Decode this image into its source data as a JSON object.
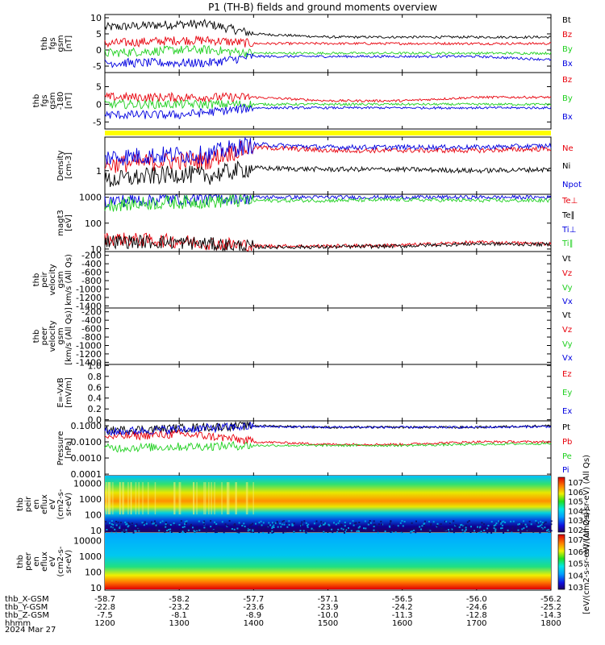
{
  "title": "P1 (TH-B) fields and ground moments overview",
  "date_label": "2024 Mar 27",
  "colors": {
    "black": "#000000",
    "red": "#e8000b",
    "green": "#20d020",
    "blue": "#0000e0",
    "yellow": "#ffff00"
  },
  "chart_data": {
    "type": "line",
    "x_axis": {
      "label": "hhmm",
      "ticks": [
        "1200",
        "1300",
        "1400",
        "1500",
        "1600",
        "1700",
        "1800"
      ],
      "ephemeris": [
        {
          "label": "thb_X-GSM",
          "values": [
            "-58.7",
            "-58.2",
            "-57.7",
            "-57.1",
            "-56.5",
            "-56.0",
            "-56.2"
          ]
        },
        {
          "label": "thb_Y-GSM",
          "values": [
            "-22.8",
            "-23.2",
            "-23.6",
            "-23.9",
            "-24.2",
            "-24.6",
            "-25.2"
          ]
        },
        {
          "label": "thb_Z-GSM",
          "values": [
            "-7.5",
            "-8.1",
            "-8.9",
            "-10.0",
            "-11.3",
            "-12.8",
            "-14.3"
          ]
        }
      ]
    },
    "panels": [
      {
        "id": "fgs",
        "ylabel": [
          "thb",
          "fgs",
          "gsm",
          "[nT]"
        ],
        "yticks": [
          "10",
          "5",
          "0",
          "-5"
        ],
        "legend": [
          {
            "name": "Bt",
            "color": "black"
          },
          {
            "name": "Bz",
            "color": "red"
          },
          {
            "name": "By",
            "color": "green"
          },
          {
            "name": "Bx",
            "color": "blue"
          }
        ]
      },
      {
        "id": "fgs-dsl",
        "ylabel": [
          "thb",
          "fgs",
          "gsm",
          "-180",
          "[nT]"
        ],
        "yticks": [
          "5",
          "0",
          "-5"
        ],
        "legend": [
          {
            "name": "Bz",
            "color": "red"
          },
          {
            "name": "By",
            "color": "green"
          },
          {
            "name": "Bx",
            "color": "blue"
          }
        ]
      },
      {
        "id": "density",
        "ylabel": [
          "Density",
          "[cm-3]"
        ],
        "yticks": [
          "1"
        ],
        "legend": [
          {
            "name": "Ne",
            "color": "red"
          },
          {
            "name": "Ni",
            "color": "black"
          },
          {
            "name": "Npot",
            "color": "blue"
          }
        ]
      },
      {
        "id": "temperature",
        "ylabel": [
          "magt3",
          "[eV]"
        ],
        "yticks": [
          "1000",
          "100",
          "10"
        ],
        "legend": [
          {
            "name": "Te⊥",
            "color": "red"
          },
          {
            "name": "Te∥",
            "color": "black"
          },
          {
            "name": "Ti⊥",
            "color": "blue"
          },
          {
            "name": "Ti∥",
            "color": "green"
          }
        ]
      },
      {
        "id": "ion-velocity",
        "ylabel": [
          "thb",
          "peir",
          "velocity",
          "gsm",
          "km/s (All Qs)"
        ],
        "yticks": [
          "-200",
          "-400",
          "-600",
          "-800",
          "-1000",
          "-1200",
          "-1400"
        ],
        "legend": [
          {
            "name": "Vt",
            "color": "black"
          },
          {
            "name": "Vz",
            "color": "red"
          },
          {
            "name": "Vy",
            "color": "green"
          },
          {
            "name": "Vx",
            "color": "blue"
          }
        ]
      },
      {
        "id": "electron-velocity",
        "ylabel": [
          "thb",
          "peer",
          "velocity",
          "gsm",
          "[km/s (All Qs)]"
        ],
        "yticks": [
          "-200",
          "-400",
          "-600",
          "-800",
          "-1000",
          "-1200",
          "-1400"
        ],
        "legend": [
          {
            "name": "Vt",
            "color": "black"
          },
          {
            "name": "Vz",
            "color": "red"
          },
          {
            "name": "Vy",
            "color": "green"
          },
          {
            "name": "Vx",
            "color": "blue"
          }
        ]
      },
      {
        "id": "efield",
        "ylabel": [
          "E=-VxB",
          "[mV/m]"
        ],
        "yticks": [
          "1.0",
          "0.8",
          "0.6",
          "0.4",
          "0.2",
          "0.0"
        ],
        "legend": [
          {
            "name": "Ez",
            "color": "red"
          },
          {
            "name": "Ey",
            "color": "green"
          },
          {
            "name": "Ex",
            "color": "blue"
          }
        ]
      },
      {
        "id": "pressure",
        "ylabel": [
          "Pressure",
          "[nPa]"
        ],
        "yticks": [
          "0.1000",
          "0.0100",
          "0.0010",
          "0.0001"
        ],
        "legend": [
          {
            "name": "Pt",
            "color": "black"
          },
          {
            "name": "Pb",
            "color": "red"
          },
          {
            "name": "Pe",
            "color": "green"
          },
          {
            "name": "Pi",
            "color": "blue"
          }
        ]
      },
      {
        "id": "ion-spectrogram",
        "ylabel": [
          "thb",
          "peir",
          "en",
          "eflux",
          "eV",
          "(cm2-s-",
          "sr-eV)"
        ],
        "yticks": [
          "10000",
          "1000",
          "100",
          "10"
        ],
        "colorbar": {
          "ticks": [
            "10^7",
            "10^6",
            "10^5",
            "10^4",
            "10^3",
            "10^2"
          ],
          "label": "eV/(cm2-s-sr-eV) (All Qs)"
        }
      },
      {
        "id": "electron-spectrogram",
        "ylabel": [
          "thb",
          "peer",
          "en",
          "eflux",
          "eV",
          "(cm2-s-",
          "sr-eV)"
        ],
        "yticks": [
          "10000",
          "1000",
          "100",
          "10"
        ],
        "colorbar": {
          "ticks": [
            "10^7",
            "10^6",
            "10^5",
            "10^4",
            "10^3"
          ],
          "label": "[eV/(cm2-s-sr-eV) (All Qs)]"
        }
      }
    ],
    "series": [
      {
        "panel": "fgs",
        "name": "Bt",
        "x": [
          1200,
          1300,
          1340,
          1400,
          1500,
          1600,
          1700,
          1800
        ],
        "values": [
          7,
          8,
          8,
          5,
          4,
          4,
          4,
          4
        ]
      },
      {
        "panel": "fgs",
        "name": "Bz",
        "x": [
          1200,
          1300,
          1340,
          1400,
          1500,
          1600,
          1700,
          1800
        ],
        "values": [
          2,
          3,
          3,
          2,
          2,
          2,
          2,
          2
        ]
      },
      {
        "panel": "fgs",
        "name": "By",
        "x": [
          1200,
          1300,
          1340,
          1400,
          1500,
          1600,
          1700,
          1800
        ],
        "values": [
          -1,
          0,
          0,
          -1,
          -1,
          -1,
          -1,
          -1
        ]
      },
      {
        "panel": "fgs",
        "name": "Bx",
        "x": [
          1200,
          1300,
          1340,
          1400,
          1500,
          1600,
          1700,
          1800
        ],
        "values": [
          -4,
          -4,
          -4,
          -2,
          -2,
          -2,
          -2,
          -3
        ]
      },
      {
        "panel": "fgs-dsl",
        "name": "Bz",
        "x": [
          1200,
          1300,
          1400,
          1500,
          1600,
          1700,
          1800
        ],
        "values": [
          2,
          2,
          2,
          1,
          1,
          2,
          2
        ]
      },
      {
        "panel": "fgs-dsl",
        "name": "By",
        "x": [
          1200,
          1300,
          1400,
          1500,
          1600,
          1700,
          1800
        ],
        "values": [
          0,
          0,
          0,
          0,
          0,
          0,
          0
        ]
      },
      {
        "panel": "fgs-dsl",
        "name": "Bx",
        "x": [
          1200,
          1300,
          1400,
          1500,
          1600,
          1700,
          1800
        ],
        "values": [
          -3,
          -3,
          -1,
          -1,
          -1,
          -1,
          -1
        ]
      },
      {
        "panel": "density",
        "name": "Ne",
        "x": [
          1200,
          1300,
          1340,
          1400,
          1500,
          1600,
          1700,
          1800
        ],
        "values": [
          1.5,
          2,
          2,
          5,
          4,
          4,
          4,
          4.5
        ]
      },
      {
        "panel": "density",
        "name": "Ni",
        "x": [
          1200,
          1300,
          1340,
          1400,
          1500,
          1600,
          1700,
          1800
        ],
        "values": [
          0.5,
          0.8,
          0.7,
          1.2,
          1.1,
          1.1,
          1.0,
          1.1
        ]
      },
      {
        "panel": "density",
        "name": "Npot",
        "x": [
          1200,
          1300,
          1340,
          1400,
          1500,
          1600,
          1700,
          1800
        ],
        "values": [
          2.5,
          3,
          3,
          6,
          5,
          5,
          5,
          5.5
        ]
      },
      {
        "panel": "temperature",
        "name": "Te⊥",
        "x": [
          1200,
          1300,
          1400,
          1500,
          1600,
          1700,
          1800
        ],
        "values": [
          25,
          20,
          13,
          13,
          14,
          18,
          16
        ]
      },
      {
        "panel": "temperature",
        "name": "Te∥",
        "x": [
          1200,
          1300,
          1400,
          1500,
          1600,
          1700,
          1800
        ],
        "values": [
          20,
          18,
          12,
          12,
          13,
          16,
          15
        ]
      },
      {
        "panel": "temperature",
        "name": "Ti⊥",
        "x": [
          1200,
          1300,
          1400,
          1500,
          1600,
          1700,
          1800
        ],
        "values": [
          700,
          900,
          1000,
          1000,
          1000,
          1000,
          1000
        ]
      },
      {
        "panel": "temperature",
        "name": "Ti∥",
        "x": [
          1200,
          1300,
          1400,
          1500,
          1600,
          1700,
          1800
        ],
        "values": [
          500,
          650,
          750,
          750,
          800,
          750,
          750
        ]
      },
      {
        "panel": "pressure",
        "name": "Pt",
        "x": [
          1200,
          1300,
          1400,
          1500,
          1600,
          1700,
          1800
        ],
        "values": [
          0.05,
          0.07,
          0.1,
          0.08,
          0.08,
          0.08,
          0.1
        ]
      },
      {
        "panel": "pressure",
        "name": "Pb",
        "x": [
          1200,
          1300,
          1400,
          1500,
          1600,
          1700,
          1800
        ],
        "values": [
          0.02,
          0.03,
          0.01,
          0.007,
          0.007,
          0.01,
          0.01
        ]
      },
      {
        "panel": "pressure",
        "name": "Pe",
        "x": [
          1200,
          1300,
          1400,
          1500,
          1600,
          1700,
          1800
        ],
        "values": [
          0.004,
          0.005,
          0.006,
          0.006,
          0.006,
          0.007,
          0.008
        ]
      },
      {
        "panel": "pressure",
        "name": "Pi",
        "x": [
          1200,
          1300,
          1400,
          1500,
          1600,
          1700,
          1800
        ],
        "values": [
          0.04,
          0.06,
          0.09,
          0.08,
          0.08,
          0.08,
          0.09
        ]
      }
    ]
  }
}
